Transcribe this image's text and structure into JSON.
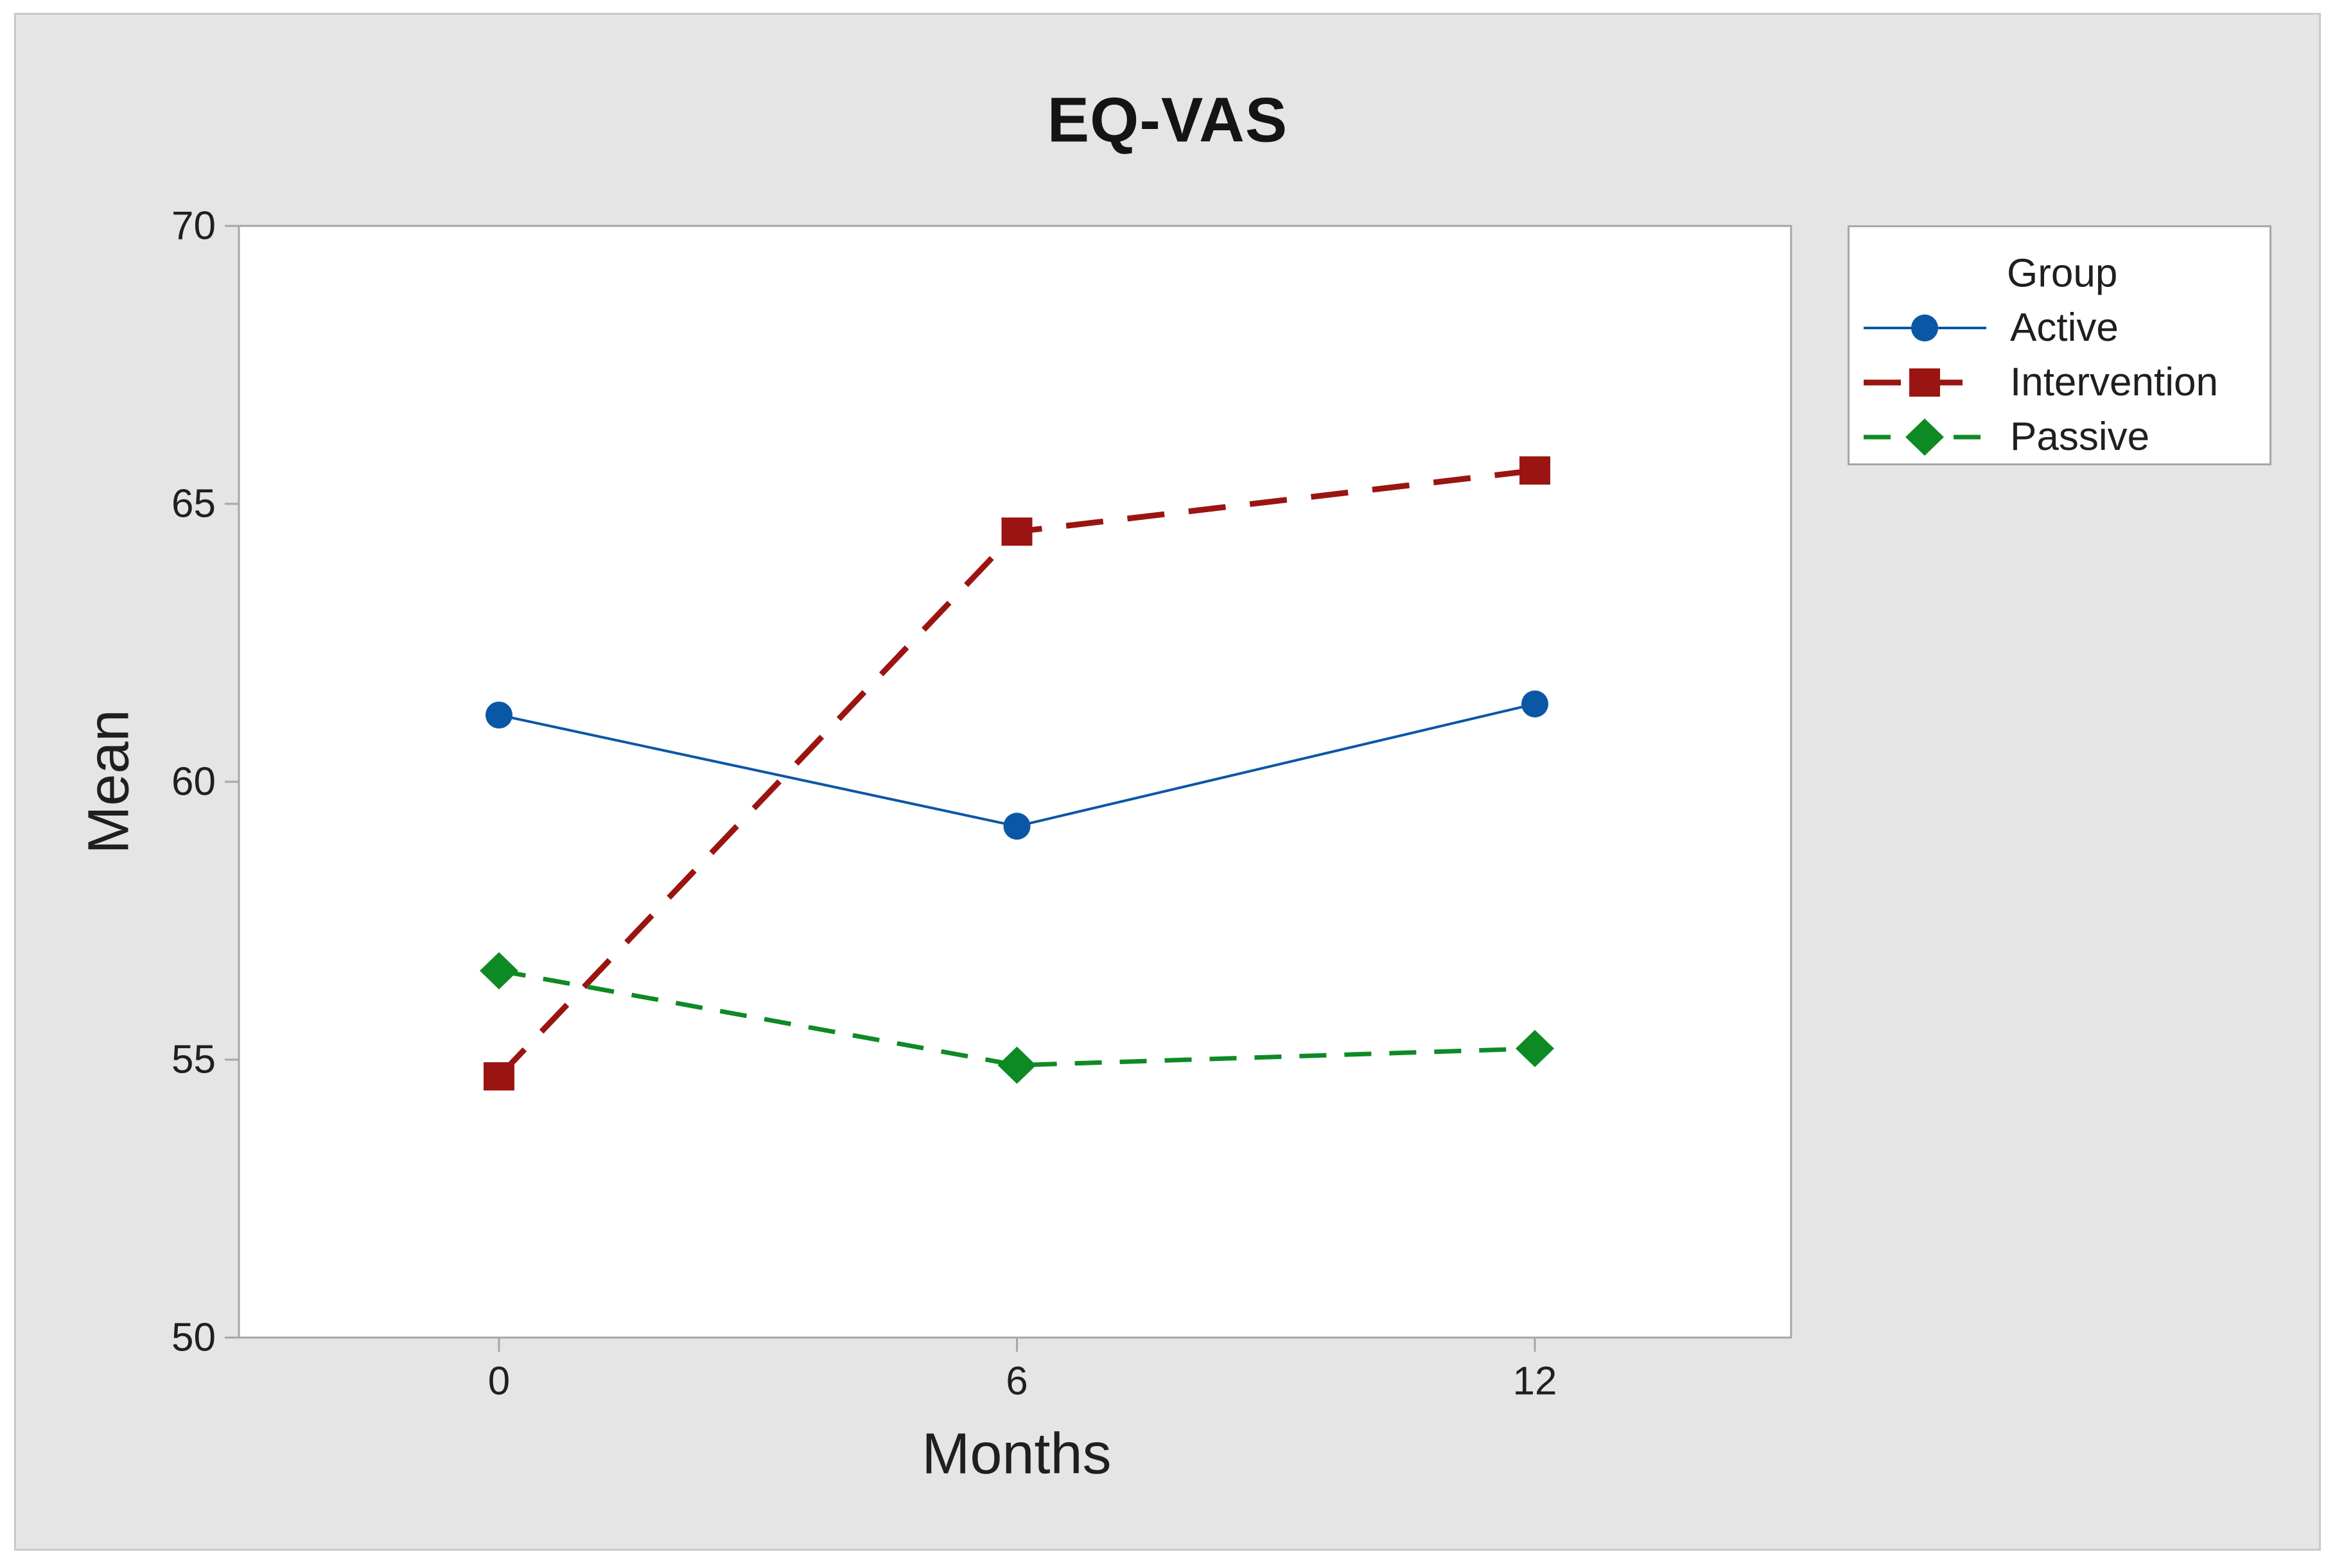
{
  "colors": {
    "page_bg": "#FFFFFF",
    "canvas_bg": "#E5E5E5",
    "canvas_border": "#C9C9C9",
    "plot_bg": "#FFFFFF",
    "frame": "#A6A6A6",
    "text": "#1F1F1F"
  },
  "chart_data": {
    "type": "line",
    "title": "EQ-VAS",
    "xlabel": "Months",
    "ylabel": "Mean",
    "x": [
      0,
      6,
      12
    ],
    "x_ticks": [
      0,
      6,
      12
    ],
    "y_ticks": [
      70,
      65,
      60,
      55,
      50
    ],
    "ylim": [
      50,
      70
    ],
    "grid": false,
    "legend": {
      "title": "Group",
      "position": "top-right"
    },
    "series": [
      {
        "name": "Active",
        "color": "#0A57A5",
        "marker": "circle",
        "line": "solid",
        "values": [
          61.2,
          59.2,
          61.4
        ]
      },
      {
        "name": "Intervention",
        "color": "#9A1512",
        "marker": "square",
        "line": "long-dash",
        "values": [
          54.7,
          64.5,
          65.6
        ]
      },
      {
        "name": "Passive",
        "color": "#0E8A25",
        "marker": "diamond",
        "line": "dash",
        "values": [
          56.6,
          54.9,
          55.2
        ]
      }
    ]
  }
}
